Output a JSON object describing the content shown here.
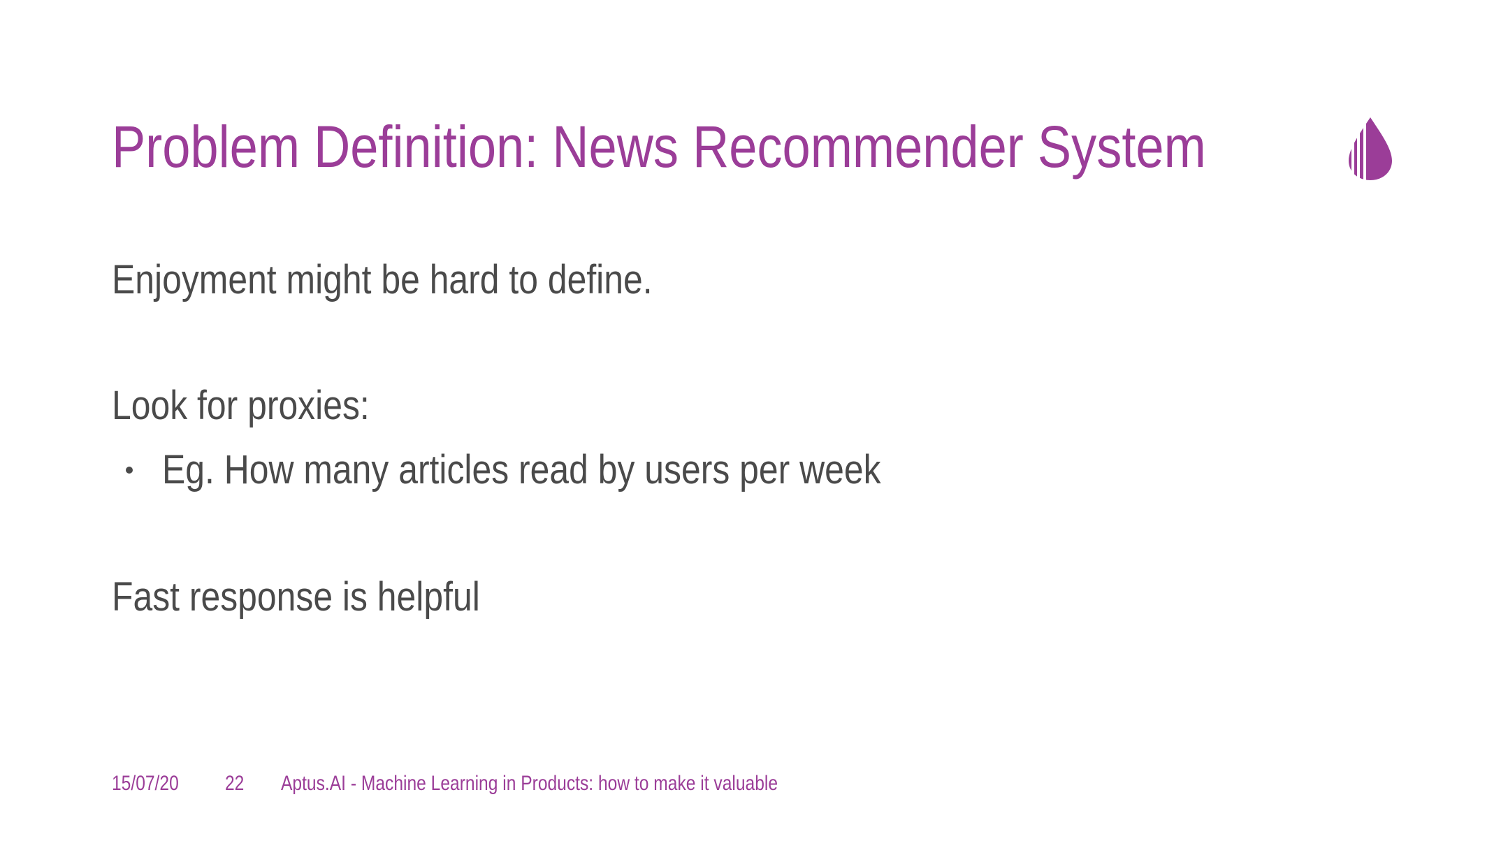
{
  "slide": {
    "title": "Problem Definition: News Recommender System",
    "body": {
      "line1": "Enjoyment might be hard to define.",
      "line2": "Look for proxies:",
      "bullets": [
        "Eg. How many articles read by users per week"
      ],
      "line3": "Fast response is helpful"
    },
    "footer": {
      "date": "15/07/20",
      "page_number": "22",
      "presentation_title": "Aptus.AI - Machine Learning in Products: how to make it valuable"
    },
    "logo": {
      "icon": "aptus-drop-logo-icon",
      "color": "#9b3d98"
    }
  },
  "colors": {
    "accent": "#9b3d98",
    "text": "#4a4a4a",
    "background": "#ffffff"
  }
}
